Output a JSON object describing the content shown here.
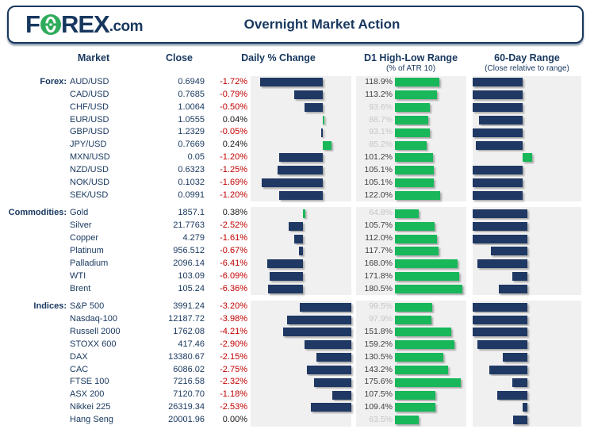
{
  "header": {
    "logo_f": "F",
    "logo_rex": "REX",
    "logo_dotcom": ".com",
    "title": "Overnight Market Action"
  },
  "columns": {
    "market": "Market",
    "close": "Close",
    "daily": "Daily % Change",
    "d1": "D1 High-Low Range",
    "d1_sub": "(% of ATR 10)",
    "range60": "60-Day Range",
    "range60_sub": "(Close relative to range)"
  },
  "colors": {
    "navy": "#1f3864",
    "green": "#18b75a",
    "red": "#c00000",
    "gray_label": "#c6c6c6",
    "plot_bg": "#f0f0f0"
  },
  "chart_data": {
    "type": "table",
    "title": "Overnight Market Action",
    "notes": "Each row: daily % change bar (navy negative, green positive), D1 high-low range as % of ATR10 (green bar, label grayed when below 100%), and close position within 60-day range (bar drawn to/from section axis; r60 = percentile 0-100).",
    "sections": [
      {
        "label": "Forex:",
        "daily_axis": 0.715,
        "daily_scale": 0.36,
        "r60_axis": 0.463,
        "rows": [
          {
            "market": "AUD/USD",
            "close": "0.6949",
            "chg": -1.72,
            "chg_label": "-1.72%",
            "atr": 118.9,
            "atr_label": "118.9%",
            "r60": 0
          },
          {
            "market": "CAD/USD",
            "close": "0.7685",
            "chg": -0.79,
            "chg_label": "-0.79%",
            "atr": 113.2,
            "atr_label": "113.2%",
            "r60": 0
          },
          {
            "market": "CHF/USD",
            "close": "1.0064",
            "chg": -0.5,
            "chg_label": "-0.50%",
            "atr": 93.6,
            "atr_label": "93.6%",
            "r60": 0
          },
          {
            "market": "EUR/USD",
            "close": "1.0555",
            "chg": 0.04,
            "chg_label": "0.04%",
            "atr": 88.7,
            "atr_label": "88.7%",
            "r60": 6
          },
          {
            "market": "GBP/USD",
            "close": "1.2329",
            "chg": -0.05,
            "chg_label": "-0.05%",
            "atr": 93.1,
            "atr_label": "93.1%",
            "r60": 0
          },
          {
            "market": "JPY/USD",
            "close": "0.7669",
            "chg": 0.24,
            "chg_label": "0.24%",
            "atr": 85.2,
            "atr_label": "85.2%",
            "r60": 3
          },
          {
            "market": "MXN/USD",
            "close": "0.05",
            "chg": -1.2,
            "chg_label": "-1.20%",
            "atr": 101.2,
            "atr_label": "101.2%",
            "r60": 58
          },
          {
            "market": "NZD/USD",
            "close": "0.6323",
            "chg": -1.25,
            "chg_label": "-1.25%",
            "atr": 105.1,
            "atr_label": "105.1%",
            "r60": 0
          },
          {
            "market": "NOK/USD",
            "close": "0.1032",
            "chg": -1.69,
            "chg_label": "-1.69%",
            "atr": 105.1,
            "atr_label": "105.1%",
            "r60": 0
          },
          {
            "market": "SEK/USD",
            "close": "0.0991",
            "chg": -1.2,
            "chg_label": "-1.20%",
            "atr": 122.0,
            "atr_label": "122.0%",
            "r60": 0
          }
        ]
      },
      {
        "label": "Commodities:",
        "daily_axis": 0.52,
        "daily_scale": 0.055,
        "r60_axis": 0.507,
        "rows": [
          {
            "market": "Gold",
            "close": "1857.1",
            "chg": 0.38,
            "chg_label": "0.38%",
            "atr": 64.8,
            "atr_label": "64.8%",
            "r60": 0
          },
          {
            "market": "Silver",
            "close": "21.7763",
            "chg": -2.52,
            "chg_label": "-2.52%",
            "atr": 105.7,
            "atr_label": "105.7%",
            "r60": 0
          },
          {
            "market": "Copper",
            "close": "4.279",
            "chg": -1.61,
            "chg_label": "-1.61%",
            "atr": 112.0,
            "atr_label": "112.0%",
            "r60": 0
          },
          {
            "market": "Platinum",
            "close": "956.512",
            "chg": -0.67,
            "chg_label": "-0.67%",
            "atr": 117.7,
            "atr_label": "117.7%",
            "r60": 16.5
          },
          {
            "market": "Palladium",
            "close": "2096.14",
            "chg": -6.41,
            "chg_label": "-6.41%",
            "atr": 168.0,
            "atr_label": "168.0%",
            "r60": 4.3
          },
          {
            "market": "WTI",
            "close": "103.09",
            "chg": -6.09,
            "chg_label": "-6.09%",
            "atr": 171.8,
            "atr_label": "171.8%",
            "r60": 36
          },
          {
            "market": "Brent",
            "close": "105.24",
            "chg": -6.36,
            "chg_label": "-6.36%",
            "atr": 180.5,
            "atr_label": "180.5%",
            "r60": 24
          }
        ]
      },
      {
        "label": "Indices:",
        "daily_axis": 1.0,
        "daily_scale": 0.16,
        "r60_axis": 0.507,
        "rows": [
          {
            "market": "S&P 500",
            "close": "3991.24",
            "chg": -3.2,
            "chg_label": "-3.20%",
            "atr": 99.5,
            "atr_label": "99.5%",
            "r60": 0
          },
          {
            "market": "Nasdaq-100",
            "close": "12187.72",
            "chg": -3.98,
            "chg_label": "-3.98%",
            "atr": 97.9,
            "atr_label": "97.9%",
            "r60": 0
          },
          {
            "market": "Russell 2000",
            "close": "1762.08",
            "chg": -4.21,
            "chg_label": "-4.21%",
            "atr": 151.8,
            "atr_label": "151.8%",
            "r60": 0
          },
          {
            "market": "STOXX 600",
            "close": "417.46",
            "chg": -2.9,
            "chg_label": "-2.90%",
            "atr": 159.2,
            "atr_label": "159.2%",
            "r60": 4.3
          },
          {
            "market": "DAX",
            "close": "13380.67",
            "chg": -2.15,
            "chg_label": "-2.15%",
            "atr": 130.5,
            "atr_label": "130.5%",
            "r60": 27
          },
          {
            "market": "CAC",
            "close": "6086.02",
            "chg": -2.75,
            "chg_label": "-2.75%",
            "atr": 143.2,
            "atr_label": "143.2%",
            "r60": 15
          },
          {
            "market": "FTSE 100",
            "close": "7216.58",
            "chg": -2.32,
            "chg_label": "-2.32%",
            "atr": 175.6,
            "atr_label": "175.6%",
            "r60": 36
          },
          {
            "market": "ASX 200",
            "close": "7120.70",
            "chg": -1.18,
            "chg_label": "-1.18%",
            "atr": 107.5,
            "atr_label": "107.5%",
            "r60": 22.6
          },
          {
            "market": "Nikkei 225",
            "close": "26319.34",
            "chg": -2.53,
            "chg_label": "-2.53%",
            "atr": 109.4,
            "atr_label": "109.4%",
            "r60": 45.7
          },
          {
            "market": "Hang Seng",
            "close": "20001.96",
            "chg": 0.0,
            "chg_label": "0.00%",
            "atr": 63.5,
            "atr_label": "63.5%",
            "r60": 36.4
          }
        ]
      }
    ],
    "d1_bar_full_scale": 187
  }
}
